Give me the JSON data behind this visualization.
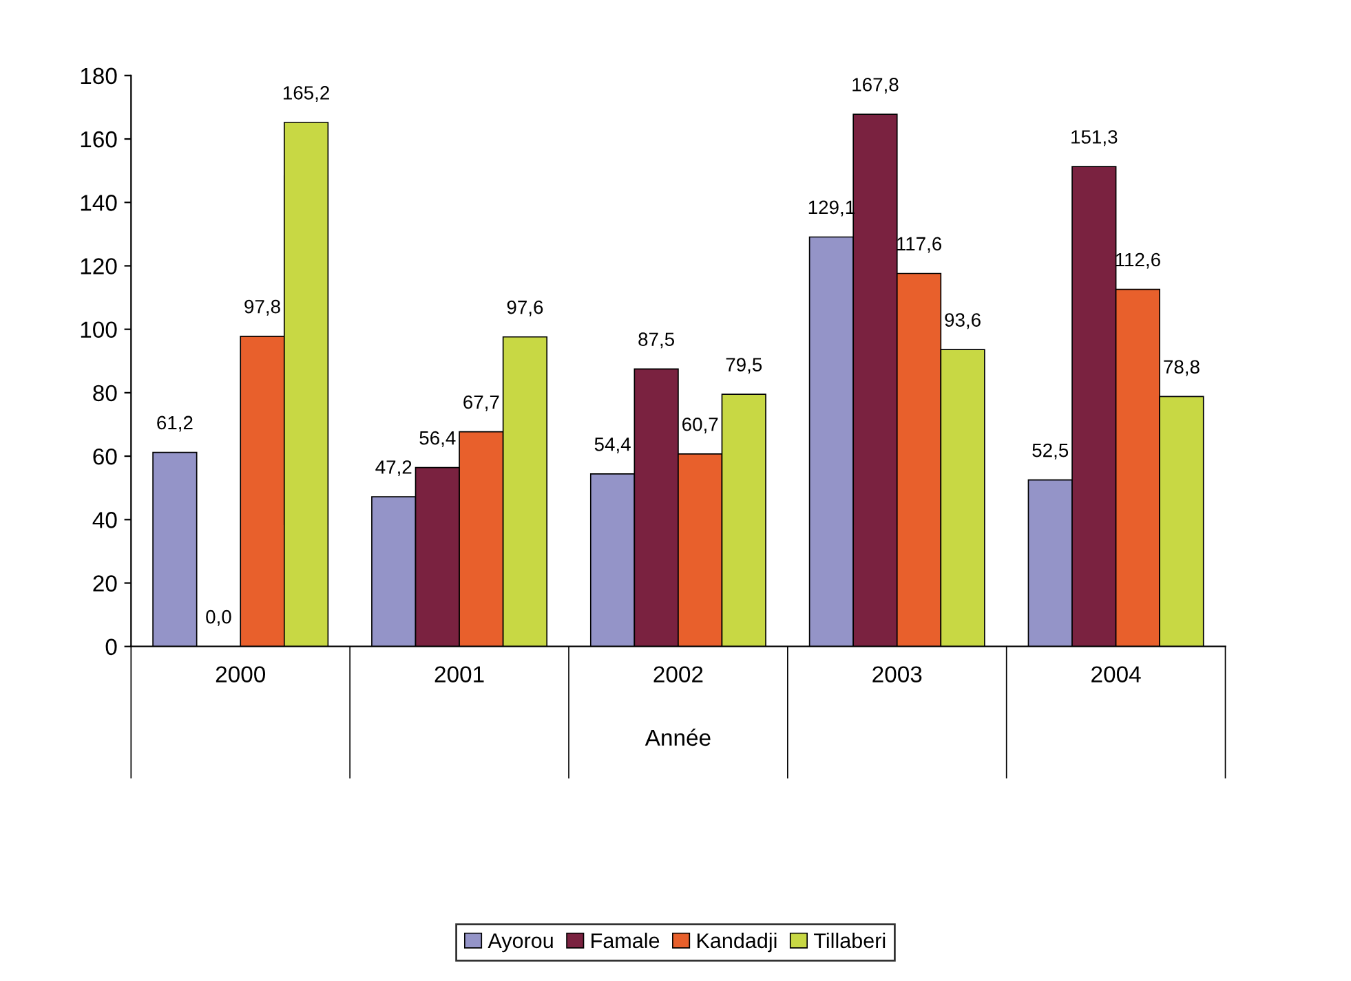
{
  "chart_data": {
    "type": "bar",
    "xlabel": "Année",
    "categories": [
      "2000",
      "2001",
      "2002",
      "2003",
      "2004"
    ],
    "series": [
      {
        "name": "Ayorou",
        "color": "#9494c8",
        "values": [
          61.2,
          47.2,
          54.4,
          129.1,
          52.5
        ],
        "value_labels": [
          "61,2",
          "47,2",
          "54,4",
          "129,1",
          "52,5"
        ]
      },
      {
        "name": "Famale",
        "color": "#7a2240",
        "values": [
          0.0,
          56.4,
          87.5,
          167.8,
          151.3
        ],
        "value_labels": [
          "0,0",
          "56,4",
          "87,5",
          "167,8",
          "151,3"
        ]
      },
      {
        "name": "Kandadji",
        "color": "#e8602c",
        "values": [
          97.8,
          67.7,
          60.7,
          117.6,
          112.6
        ],
        "value_labels": [
          "97,8",
          "67,7",
          "60,7",
          "117,6",
          "112,6"
        ]
      },
      {
        "name": "Tillaberi",
        "color": "#c8d844",
        "values": [
          165.2,
          97.6,
          79.5,
          93.6,
          78.8
        ],
        "value_labels": [
          "165,2",
          "97,6",
          "79,5",
          "93,6",
          "78,8"
        ]
      }
    ],
    "ylim": [
      0,
      180
    ],
    "yticks": [
      0,
      20,
      40,
      60,
      80,
      100,
      120,
      140,
      160,
      180
    ],
    "grid": false,
    "legend": "bottom"
  }
}
